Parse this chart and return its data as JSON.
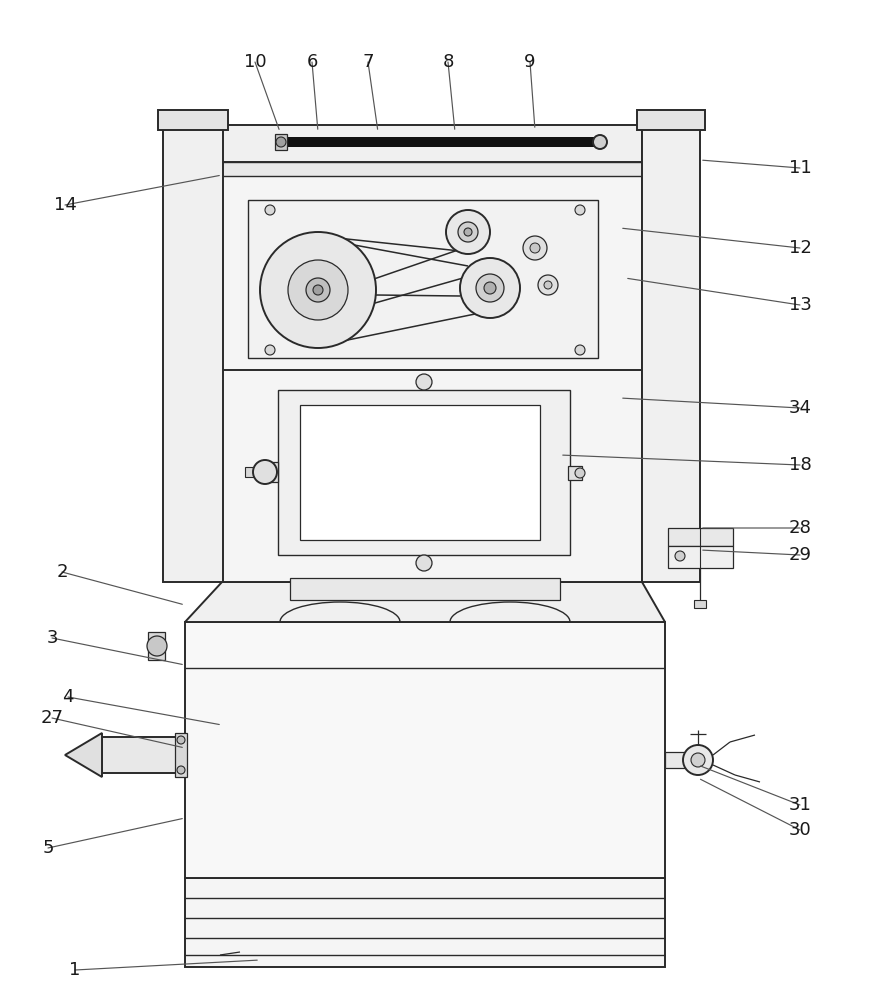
{
  "bg_color": "#ffffff",
  "lc": "#2a2a2a",
  "lw": 1.4,
  "label_fs": 13,
  "label_color": "#1a1a1a",
  "labels": [
    [
      "1",
      450,
      962,
      195,
      940,
      450,
      965
    ],
    [
      "2",
      185,
      595,
      62,
      535,
      185,
      595
    ],
    [
      "3",
      185,
      660,
      55,
      640,
      185,
      660
    ],
    [
      "4",
      222,
      720,
      72,
      710,
      222,
      720
    ],
    [
      "5",
      185,
      825,
      52,
      870,
      185,
      825
    ],
    [
      "6",
      318,
      130,
      318,
      62,
      318,
      130
    ],
    [
      "7",
      378,
      130,
      378,
      62,
      378,
      130
    ],
    [
      "8",
      455,
      130,
      455,
      62,
      455,
      130
    ],
    [
      "9",
      530,
      130,
      530,
      62,
      530,
      130
    ],
    [
      "10",
      280,
      130,
      280,
      62,
      280,
      130
    ],
    [
      "11",
      680,
      175,
      790,
      175,
      680,
      175
    ],
    [
      "12",
      680,
      235,
      800,
      255,
      680,
      235
    ],
    [
      "13",
      660,
      285,
      800,
      310,
      660,
      285
    ],
    [
      "14",
      222,
      170,
      72,
      195,
      222,
      170
    ],
    [
      "18",
      560,
      430,
      800,
      460,
      560,
      430
    ],
    [
      "27",
      185,
      735,
      52,
      695,
      185,
      735
    ],
    [
      "28",
      680,
      540,
      800,
      540,
      680,
      540
    ],
    [
      "29",
      680,
      560,
      800,
      575,
      680,
      560
    ],
    [
      "30",
      660,
      790,
      800,
      845,
      660,
      790
    ],
    [
      "31",
      660,
      775,
      800,
      820,
      660,
      775
    ],
    [
      "34",
      620,
      400,
      800,
      400,
      620,
      400
    ]
  ]
}
